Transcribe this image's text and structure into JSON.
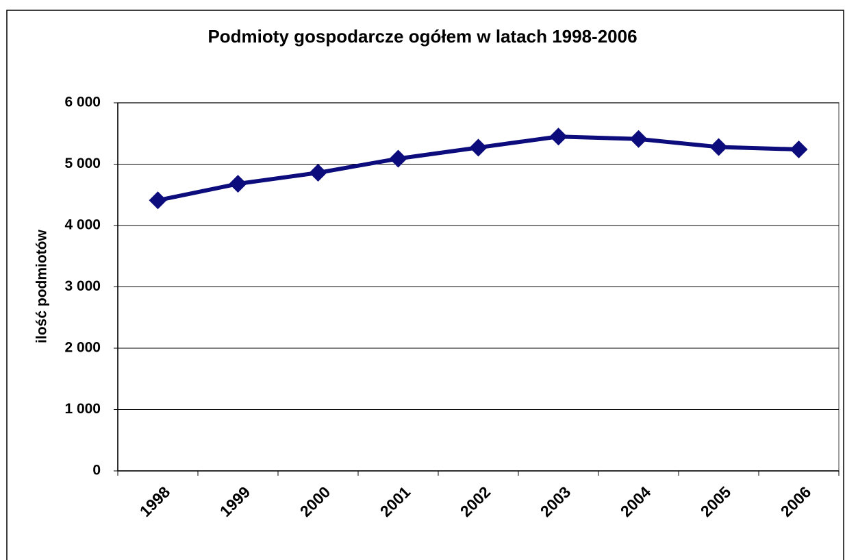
{
  "chart_data": {
    "type": "line",
    "title": "Podmioty gospodarcze ogółem w latach 1998-2006",
    "y_label": "ilość podmiotów",
    "categories": [
      "1998",
      "1999",
      "2000",
      "2001",
      "2002",
      "2003",
      "2004",
      "2005",
      "2006"
    ],
    "series": [
      {
        "name": "Podmioty gospodarcze",
        "color": "#0c0c7c",
        "values": [
          4410,
          4680,
          4860,
          5090,
          5270,
          5450,
          5410,
          5280,
          5240
        ]
      }
    ],
    "ylim": [
      0,
      6000
    ],
    "yticks": [
      0,
      {
        "value": 1000,
        "label": "1 000"
      },
      {
        "value": 2000,
        "label": "2 000"
      },
      {
        "value": 3000,
        "label": "3 000"
      },
      {
        "value": 4000,
        "label": "4 000"
      },
      {
        "value": 5000,
        "label": "5 000"
      },
      {
        "value": 6000,
        "label": "6 000"
      }
    ],
    "grid": true
  }
}
